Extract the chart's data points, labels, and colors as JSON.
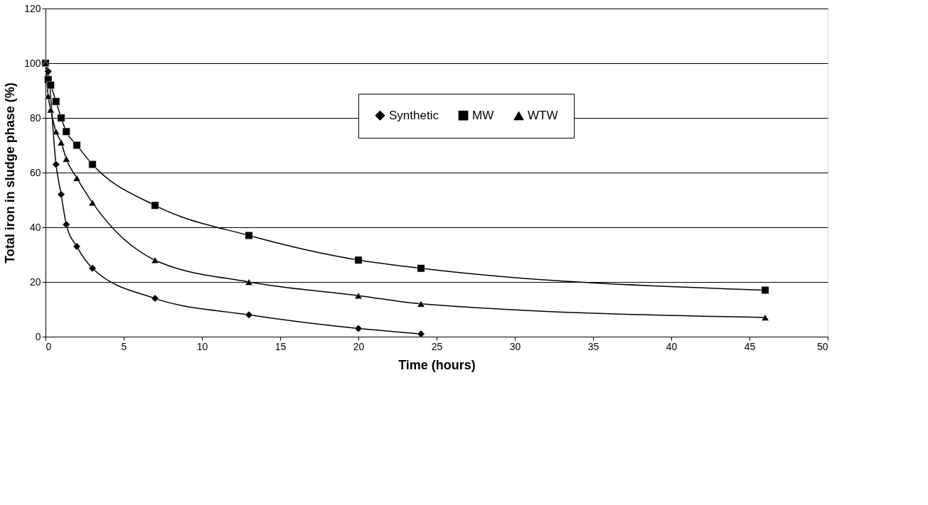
{
  "chart_data": {
    "type": "line",
    "xlabel": "Time (hours)",
    "ylabel": "Total iron in sludge phase (%)",
    "xlim": [
      0,
      50
    ],
    "xticks": [
      0,
      5,
      10,
      15,
      20,
      25,
      30,
      35,
      40,
      45,
      50
    ],
    "ylim": [
      0,
      120
    ],
    "yticks": [
      0,
      20,
      40,
      60,
      80,
      100,
      120
    ],
    "grid": "y",
    "legend": "top",
    "line_style": "solid",
    "series": [
      {
        "name": "Synthetic",
        "color": "#000000",
        "marker": "diamond",
        "x": [
          0,
          0.17,
          0.67,
          1,
          1.33,
          2,
          3,
          7,
          13,
          20,
          24
        ],
        "values": [
          100,
          97,
          63,
          52,
          41,
          33,
          25,
          14,
          8,
          3,
          1
        ]
      },
      {
        "name": "MW",
        "color": "#000000",
        "marker": "square",
        "x": [
          0,
          0.17,
          0.33,
          0.67,
          1,
          1.33,
          2,
          3,
          7,
          13,
          20,
          24,
          46
        ],
        "values": [
          100,
          94,
          92,
          86,
          80,
          75,
          70,
          63,
          48,
          37,
          28,
          25,
          17
        ]
      },
      {
        "name": "WTW",
        "color": "#000000",
        "marker": "triangle",
        "x": [
          0,
          0.17,
          0.33,
          0.67,
          1,
          1.33,
          2,
          3,
          7,
          13,
          20,
          24,
          46
        ],
        "values": [
          100,
          88,
          83,
          75,
          71,
          65,
          58,
          49,
          28,
          20,
          15,
          12,
          7
        ]
      }
    ]
  }
}
